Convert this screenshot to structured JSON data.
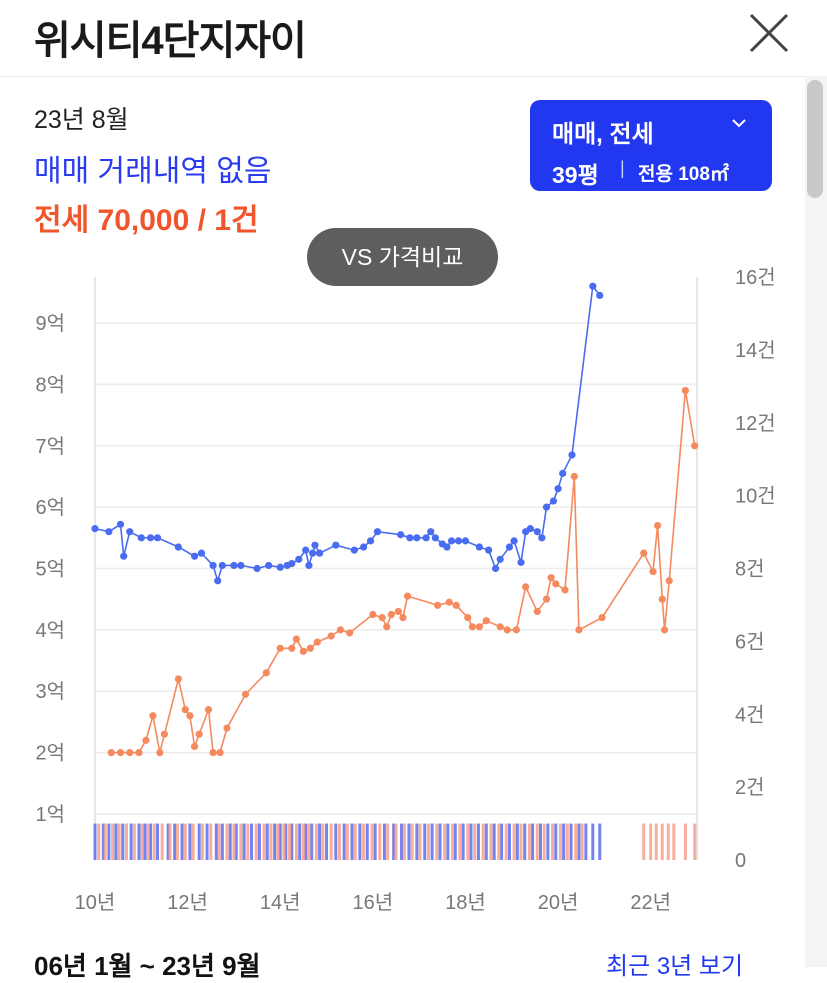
{
  "header": {
    "title": "위시티4단지자이",
    "close_icon": "close-icon"
  },
  "summary": {
    "date": "23년 8월",
    "sale_text": "매매 거래내역 없음",
    "jeonse_text": "전세 70,000 / 1건"
  },
  "filter": {
    "types": "매매, 전세",
    "size": "39평",
    "separator": "|",
    "area": "전용 108㎡",
    "icon": "chevron-down-icon"
  },
  "vs_button": {
    "label": "VS 가격비교"
  },
  "footer": {
    "range": "06년 1월 ~ 23년 9월",
    "recent_link": "최근 3년 보기"
  },
  "colors": {
    "sale": "#4a6cf0",
    "jeonse": "#f58a5e",
    "sale_bar": "#5a6ff0",
    "jeonse_bar": "#f7a08a",
    "accent": "#2237f0"
  },
  "chart_data": {
    "type": "line",
    "x_tick_labels": [
      "10년",
      "12년",
      "14년",
      "16년",
      "18년",
      "20년",
      "22년"
    ],
    "x_ticks": [
      2010,
      2012,
      2014,
      2016,
      2018,
      2020,
      2022
    ],
    "y_left_tick_labels": [
      "1억",
      "2억",
      "3억",
      "4억",
      "5억",
      "6억",
      "7억",
      "8억",
      "9억"
    ],
    "y_left_ticks": [
      1,
      2,
      3,
      4,
      5,
      6,
      7,
      8,
      9
    ],
    "y_right_tick_labels": [
      "0",
      "2건",
      "4건",
      "6건",
      "8건",
      "10건",
      "12건",
      "14건",
      "16건"
    ],
    "y_right_ticks": [
      0,
      2,
      4,
      6,
      8,
      10,
      12,
      14,
      16
    ],
    "xlim": [
      2010,
      2023
    ],
    "ylim_left": [
      0.25,
      9.75
    ],
    "ylim_right": [
      0,
      16
    ],
    "series": [
      {
        "key": "sale",
        "type": "line",
        "points": [
          [
            2010.0,
            5.65
          ],
          [
            2010.3,
            5.6
          ],
          [
            2010.55,
            5.72
          ],
          [
            2010.62,
            5.2
          ],
          [
            2010.75,
            5.6
          ],
          [
            2011.0,
            5.5
          ],
          [
            2011.2,
            5.5
          ],
          [
            2011.35,
            5.5
          ],
          [
            2011.8,
            5.35
          ],
          [
            2012.15,
            5.2
          ],
          [
            2012.3,
            5.25
          ],
          [
            2012.55,
            5.05
          ],
          [
            2012.65,
            4.8
          ],
          [
            2012.75,
            5.05
          ],
          [
            2013.0,
            5.05
          ],
          [
            2013.15,
            5.05
          ],
          [
            2013.5,
            5.0
          ],
          [
            2013.75,
            5.05
          ],
          [
            2014.0,
            5.02
          ],
          [
            2014.15,
            5.05
          ],
          [
            2014.25,
            5.08
          ],
          [
            2014.4,
            5.15
          ],
          [
            2014.55,
            5.3
          ],
          [
            2014.62,
            5.05
          ],
          [
            2014.7,
            5.25
          ],
          [
            2014.75,
            5.38
          ],
          [
            2014.85,
            5.25
          ],
          [
            2015.2,
            5.38
          ],
          [
            2015.6,
            5.3
          ],
          [
            2015.8,
            5.35
          ],
          [
            2015.95,
            5.45
          ],
          [
            2016.1,
            5.6
          ],
          [
            2016.6,
            5.55
          ],
          [
            2016.8,
            5.5
          ],
          [
            2016.95,
            5.5
          ],
          [
            2017.15,
            5.5
          ],
          [
            2017.25,
            5.6
          ],
          [
            2017.35,
            5.5
          ],
          [
            2017.5,
            5.4
          ],
          [
            2017.6,
            5.35
          ],
          [
            2017.7,
            5.45
          ],
          [
            2017.85,
            5.45
          ],
          [
            2018.0,
            5.45
          ],
          [
            2018.3,
            5.35
          ],
          [
            2018.5,
            5.3
          ],
          [
            2018.65,
            5.0
          ],
          [
            2018.75,
            5.15
          ],
          [
            2018.95,
            5.35
          ],
          [
            2019.05,
            5.45
          ],
          [
            2019.2,
            5.1
          ],
          [
            2019.3,
            5.6
          ],
          [
            2019.4,
            5.65
          ],
          [
            2019.55,
            5.6
          ],
          [
            2019.65,
            5.5
          ],
          [
            2019.75,
            6.0
          ],
          [
            2019.9,
            6.1
          ],
          [
            2020.0,
            6.3
          ],
          [
            2020.1,
            6.55
          ],
          [
            2020.3,
            6.85
          ],
          [
            2020.75,
            9.6
          ],
          [
            2020.9,
            9.45
          ]
        ]
      },
      {
        "key": "jeonse",
        "type": "line",
        "points": [
          [
            2010.35,
            2.0
          ],
          [
            2010.55,
            2.0
          ],
          [
            2010.75,
            2.0
          ],
          [
            2010.95,
            2.0
          ],
          [
            2011.1,
            2.2
          ],
          [
            2011.25,
            2.6
          ],
          [
            2011.4,
            2.0
          ],
          [
            2011.5,
            2.3
          ],
          [
            2011.8,
            3.2
          ],
          [
            2011.95,
            2.7
          ],
          [
            2012.05,
            2.6
          ],
          [
            2012.15,
            2.1
          ],
          [
            2012.25,
            2.3
          ],
          [
            2012.45,
            2.7
          ],
          [
            2012.55,
            2.0
          ],
          [
            2012.7,
            2.0
          ],
          [
            2012.85,
            2.4
          ],
          [
            2013.25,
            2.95
          ],
          [
            2013.7,
            3.3
          ],
          [
            2014.0,
            3.7
          ],
          [
            2014.25,
            3.7
          ],
          [
            2014.35,
            3.85
          ],
          [
            2014.5,
            3.65
          ],
          [
            2014.65,
            3.7
          ],
          [
            2014.8,
            3.8
          ],
          [
            2015.1,
            3.9
          ],
          [
            2015.3,
            4.0
          ],
          [
            2015.5,
            3.95
          ],
          [
            2016.0,
            4.25
          ],
          [
            2016.2,
            4.2
          ],
          [
            2016.3,
            4.05
          ],
          [
            2016.4,
            4.25
          ],
          [
            2016.55,
            4.3
          ],
          [
            2016.65,
            4.2
          ],
          [
            2016.75,
            4.55
          ],
          [
            2017.4,
            4.4
          ],
          [
            2017.65,
            4.45
          ],
          [
            2017.8,
            4.4
          ],
          [
            2018.05,
            4.2
          ],
          [
            2018.15,
            4.05
          ],
          [
            2018.3,
            4.05
          ],
          [
            2018.45,
            4.15
          ],
          [
            2018.75,
            4.05
          ],
          [
            2018.9,
            4.0
          ],
          [
            2019.1,
            4.0
          ],
          [
            2019.3,
            4.7
          ],
          [
            2019.55,
            4.3
          ],
          [
            2019.75,
            4.5
          ],
          [
            2019.85,
            4.85
          ],
          [
            2019.95,
            4.75
          ],
          [
            2020.15,
            4.65
          ],
          [
            2020.35,
            6.5
          ],
          [
            2020.45,
            4.0
          ],
          [
            2020.95,
            4.2
          ],
          [
            2021.85,
            5.25
          ],
          [
            2022.05,
            4.95
          ],
          [
            2022.15,
            5.7
          ],
          [
            2022.25,
            4.5
          ],
          [
            2022.3,
            4.0
          ],
          [
            2022.4,
            4.8
          ],
          [
            2022.75,
            7.9
          ],
          [
            2022.95,
            7.0
          ]
        ]
      },
      {
        "key": "sale_volume",
        "type": "bar",
        "axis": "right",
        "points": [
          [
            2010.0,
            1
          ],
          [
            2010.18,
            1
          ],
          [
            2010.3,
            1
          ],
          [
            2010.45,
            1
          ],
          [
            2010.6,
            1
          ],
          [
            2010.78,
            1
          ],
          [
            2010.95,
            1
          ],
          [
            2011.08,
            1
          ],
          [
            2011.2,
            1
          ],
          [
            2011.35,
            1
          ],
          [
            2011.58,
            1
          ],
          [
            2011.72,
            1
          ],
          [
            2011.88,
            1
          ],
          [
            2012.05,
            1
          ],
          [
            2012.25,
            1
          ],
          [
            2012.42,
            1
          ],
          [
            2012.62,
            1
          ],
          [
            2012.75,
            1
          ],
          [
            2012.92,
            1
          ],
          [
            2013.05,
            1
          ],
          [
            2013.22,
            1
          ],
          [
            2013.38,
            1
          ],
          [
            2013.55,
            1
          ],
          [
            2013.72,
            1
          ],
          [
            2013.88,
            1
          ],
          [
            2014.0,
            1
          ],
          [
            2014.12,
            1
          ],
          [
            2014.25,
            1
          ],
          [
            2014.42,
            1
          ],
          [
            2014.55,
            1
          ],
          [
            2014.68,
            1
          ],
          [
            2014.85,
            1
          ],
          [
            2015.0,
            1
          ],
          [
            2015.2,
            1
          ],
          [
            2015.38,
            1
          ],
          [
            2015.55,
            1
          ],
          [
            2015.72,
            1
          ],
          [
            2015.88,
            1
          ],
          [
            2016.05,
            1
          ],
          [
            2016.25,
            1
          ],
          [
            2016.45,
            1
          ],
          [
            2016.62,
            1
          ],
          [
            2016.78,
            1
          ],
          [
            2016.95,
            1
          ],
          [
            2017.12,
            1
          ],
          [
            2017.28,
            1
          ],
          [
            2017.45,
            1
          ],
          [
            2017.62,
            1
          ],
          [
            2017.78,
            1
          ],
          [
            2017.95,
            1
          ],
          [
            2018.12,
            1
          ],
          [
            2018.28,
            1
          ],
          [
            2018.45,
            1
          ],
          [
            2018.62,
            1
          ],
          [
            2018.78,
            1
          ],
          [
            2018.95,
            1
          ],
          [
            2019.12,
            1
          ],
          [
            2019.28,
            1
          ],
          [
            2019.45,
            1
          ],
          [
            2019.62,
            1
          ],
          [
            2019.78,
            1
          ],
          [
            2019.95,
            1
          ],
          [
            2020.12,
            1
          ],
          [
            2020.28,
            1
          ],
          [
            2020.45,
            1
          ],
          [
            2020.6,
            1
          ],
          [
            2020.75,
            1
          ],
          [
            2020.9,
            1
          ]
        ]
      },
      {
        "key": "jeonse_volume",
        "type": "bar",
        "axis": "right",
        "points": [
          [
            2010.08,
            1
          ],
          [
            2010.22,
            1
          ],
          [
            2010.38,
            1
          ],
          [
            2010.52,
            1
          ],
          [
            2010.68,
            1
          ],
          [
            2010.85,
            1
          ],
          [
            2011.02,
            1
          ],
          [
            2011.15,
            1
          ],
          [
            2011.28,
            1
          ],
          [
            2011.45,
            1
          ],
          [
            2011.62,
            1
          ],
          [
            2011.78,
            1
          ],
          [
            2011.95,
            1
          ],
          [
            2012.12,
            1
          ],
          [
            2012.32,
            1
          ],
          [
            2012.5,
            1
          ],
          [
            2012.68,
            1
          ],
          [
            2012.85,
            1
          ],
          [
            2013.0,
            1
          ],
          [
            2013.15,
            1
          ],
          [
            2013.3,
            1
          ],
          [
            2013.48,
            1
          ],
          [
            2013.65,
            1
          ],
          [
            2013.8,
            1
          ],
          [
            2013.95,
            1
          ],
          [
            2014.08,
            1
          ],
          [
            2014.2,
            1
          ],
          [
            2014.35,
            1
          ],
          [
            2014.5,
            1
          ],
          [
            2014.62,
            1
          ],
          [
            2014.78,
            1
          ],
          [
            2014.92,
            1
          ],
          [
            2015.1,
            1
          ],
          [
            2015.28,
            1
          ],
          [
            2015.45,
            1
          ],
          [
            2015.62,
            1
          ],
          [
            2015.8,
            1
          ],
          [
            2015.98,
            1
          ],
          [
            2016.15,
            1
          ],
          [
            2016.32,
            1
          ],
          [
            2016.5,
            1
          ],
          [
            2016.68,
            1
          ],
          [
            2016.85,
            1
          ],
          [
            2017.02,
            1
          ],
          [
            2017.2,
            1
          ],
          [
            2017.38,
            1
          ],
          [
            2017.55,
            1
          ],
          [
            2017.72,
            1
          ],
          [
            2017.88,
            1
          ],
          [
            2018.05,
            1
          ],
          [
            2018.2,
            1
          ],
          [
            2018.38,
            1
          ],
          [
            2018.55,
            1
          ],
          [
            2018.72,
            1
          ],
          [
            2018.88,
            1
          ],
          [
            2019.05,
            1
          ],
          [
            2019.2,
            1
          ],
          [
            2019.38,
            1
          ],
          [
            2019.55,
            1
          ],
          [
            2019.7,
            1
          ],
          [
            2019.88,
            1
          ],
          [
            2020.05,
            1
          ],
          [
            2020.2,
            1
          ],
          [
            2020.38,
            1
          ],
          [
            2020.52,
            1
          ],
          [
            2021.85,
            1
          ],
          [
            2022.0,
            1
          ],
          [
            2022.12,
            1
          ],
          [
            2022.25,
            1
          ],
          [
            2022.38,
            1
          ],
          [
            2022.5,
            1
          ],
          [
            2022.75,
            1
          ],
          [
            2022.95,
            1
          ]
        ]
      }
    ]
  }
}
